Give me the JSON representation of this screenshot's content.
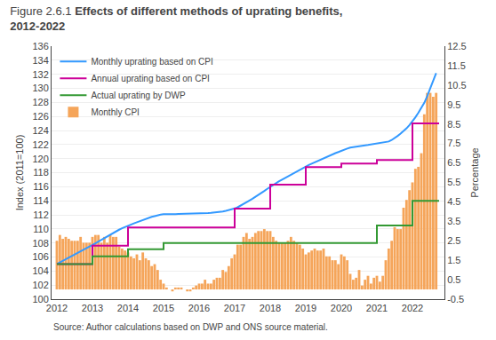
{
  "chart_data": {
    "type": "line",
    "title": "Figure 2.6.1",
    "subtitle": "Effects of different methods of uprating benefits,\n2012-2022",
    "annotations": [
      "Source: Author calculations based on DWP and ONS source material."
    ],
    "ylabel": "Index (2011=100)",
    "y2label": "Percentage",
    "x": [
      2012,
      2012.083333,
      2012.166667,
      2012.25,
      2012.333333,
      2012.416667,
      2012.5,
      2012.583333,
      2012.666667,
      2012.75,
      2012.833333,
      2012.916667,
      2013,
      2013.083333,
      2013.166667,
      2013.25,
      2013.333333,
      2013.416667,
      2013.5,
      2013.583333,
      2013.666667,
      2013.75,
      2013.833333,
      2013.916667,
      2014,
      2014.083333,
      2014.166667,
      2014.25,
      2014.333333,
      2014.416667,
      2014.5,
      2014.583333,
      2014.666667,
      2014.75,
      2014.833333,
      2014.916667,
      2015,
      2015.083333,
      2015.166667,
      2015.25,
      2015.333333,
      2015.416667,
      2015.5,
      2015.583333,
      2015.666667,
      2015.75,
      2015.833333,
      2015.916667,
      2016,
      2016.083333,
      2016.166667,
      2016.25,
      2016.333333,
      2016.416667,
      2016.5,
      2016.583333,
      2016.666667,
      2016.75,
      2016.833333,
      2016.916667,
      2017,
      2017.083333,
      2017.166667,
      2017.25,
      2017.333333,
      2017.416667,
      2017.5,
      2017.583333,
      2017.666667,
      2017.75,
      2017.833333,
      2017.916667,
      2018,
      2018.083333,
      2018.166667,
      2018.25,
      2018.333333,
      2018.416667,
      2018.5,
      2018.583333,
      2018.666667,
      2018.75,
      2018.833333,
      2018.916667,
      2019,
      2019.083333,
      2019.166667,
      2019.25,
      2019.333333,
      2019.416667,
      2019.5,
      2019.583333,
      2019.666667,
      2019.75,
      2019.833333,
      2019.916667,
      2020,
      2020.083333,
      2020.166667,
      2020.25,
      2020.333333,
      2020.416667,
      2020.5,
      2020.583333,
      2020.666667,
      2020.75,
      2020.833333,
      2020.916667,
      2021,
      2021.083333,
      2021.166667,
      2021.25,
      2021.333333,
      2021.416667,
      2021.5,
      2021.583333,
      2021.666667,
      2021.75,
      2021.833333,
      2021.916667,
      2022,
      2022.083333,
      2022.166667,
      2022.25,
      2022.333333,
      2022.416667,
      2022.5,
      2022.583333,
      2022.666667
    ],
    "series": [
      {
        "name": "Monthly uprating based on CPI",
        "type": "line",
        "color": "#3399ff",
        "values": [
          105,
          105.2188,
          105.4643,
          105.6928,
          105.9306,
          106.1601,
          106.3813,
          106.6029,
          106.825,
          107.0653,
          107.2795,
          107.494,
          107.709,
          107.9514,
          108.2032,
          108.4557,
          108.6726,
          108.9171,
          109.135,
          109.3896,
          109.6357,
          109.8824,
          110.0839,
          110.2765,
          110.4603,
          110.6352,
          110.7919,
          110.9397,
          111.1061,
          111.245,
          111.4211,
          111.5697,
          111.7091,
          111.8208,
          111.942,
          112.0353,
          112.0819,
          112.11,
          112.1193,
          112.1193,
          112.11,
          112.1193,
          112.1286,
          112.138,
          112.138,
          112.1286,
          112.1193,
          112.1286,
          112.1473,
          112.1754,
          112.2034,
          112.2502,
          112.2782,
          112.3063,
          112.3531,
          112.4093,
          112.4655,
          112.5592,
          112.6436,
          112.7563,
          112.9066,
          113.076,
          113.2927,
          113.5098,
          113.7652,
          114.0402,
          114.2872,
          114.5444,
          114.8212,
          115.1083,
          115.396,
          115.6941,
          115.9834,
          116.2733,
          116.5349,
          116.7777,
          117.0113,
          117.2453,
          117.4798,
          117.7245,
          117.9894,
          118.2352,
          118.4717,
          118.6988,
          118.9065,
          119.0849,
          119.2734,
          119.4722,
          119.6813,
          119.8807,
          120.0805,
          120.2907,
          120.4611,
          120.6318,
          120.7825,
          120.9335,
          121.0645,
          121.2461,
          121.4179,
          121.5697,
          121.6507,
          121.7014,
          121.7623,
          121.8637,
          121.884,
          121.9348,
          122.0059,
          122.0364,
          122.0975,
          122.1687,
          122.2094,
          122.2807,
          122.4336,
          122.6478,
          122.9033,
          123.2311,
          123.5494,
          123.8686,
          124.3021,
          124.7786,
          125.3089,
          125.8833,
          126.5337,
          127.198,
          127.9399,
          128.8995,
          129.9844,
          131.0784,
          132.1598
        ]
      },
      {
        "name": "Annual uprating based on CPI",
        "type": "line",
        "color": "#cc0099",
        "x": [
          2012,
          2013,
          2013,
          2014,
          2014,
          2015,
          2015,
          2016,
          2016,
          2017,
          2017,
          2018,
          2018,
          2019,
          2019,
          2020,
          2020,
          2021,
          2021,
          2022,
          2022,
          2022.75
        ],
        "values": [
          105.0,
          105.0,
          107.6,
          107.6,
          110.2,
          110.2,
          110.2,
          110.2,
          110.2,
          110.2,
          112.9,
          112.9,
          116.3,
          116.3,
          118.8,
          118.8,
          119.3,
          119.3,
          119.8,
          119.8,
          125.0,
          125.0
        ]
      },
      {
        "name": "Actual uprating by DWP",
        "type": "line",
        "color": "#339933",
        "x": [
          2012,
          2013,
          2013,
          2014,
          2014,
          2015,
          2015,
          2020,
          2020,
          2021,
          2021,
          2022,
          2022,
          2022.75
        ],
        "values": [
          105.0,
          105.0,
          106.1,
          106.1,
          107.1,
          107.1,
          108.0,
          108.0,
          108.0,
          108.0,
          110.5,
          110.5,
          114.0,
          114.0
        ]
      },
      {
        "name": "Monthly CPI",
        "type": "bar",
        "axis": "y2",
        "color": "#f5a55a",
        "values": [
          2.5,
          2.8,
          2.6,
          2.7,
          2.6,
          2.5,
          2.5,
          2.5,
          2.7,
          2.4,
          2.4,
          2.4,
          2.7,
          2.8,
          2.8,
          2.4,
          2.7,
          2.4,
          2.8,
          2.7,
          2.7,
          2.2,
          2.1,
          2.0,
          1.9,
          1.7,
          1.6,
          1.8,
          1.5,
          1.9,
          1.6,
          1.5,
          1.2,
          1.3,
          1.0,
          0.5,
          0.3,
          0.1,
          0.0,
          -0.1,
          0.1,
          0.1,
          0.1,
          0.0,
          -0.1,
          -0.1,
          0.1,
          0.2,
          0.3,
          0.3,
          0.5,
          0.3,
          0.3,
          0.5,
          0.6,
          0.6,
          1.0,
          0.9,
          1.2,
          1.6,
          1.8,
          2.3,
          2.3,
          2.7,
          2.9,
          2.6,
          2.7,
          2.9,
          3.0,
          3.0,
          3.1,
          3.0,
          3.0,
          2.7,
          2.5,
          2.4,
          2.4,
          2.4,
          2.5,
          2.7,
          2.5,
          2.4,
          2.3,
          2.1,
          1.8,
          1.9,
          2.0,
          2.1,
          2.0,
          2.0,
          2.1,
          1.7,
          1.7,
          1.5,
          1.5,
          1.3,
          1.8,
          1.7,
          1.5,
          0.8,
          0.5,
          0.6,
          1.0,
          0.2,
          0.5,
          0.7,
          0.3,
          0.6,
          0.7,
          0.4,
          0.7,
          1.5,
          2.1,
          2.5,
          3.2,
          3.1,
          3.1,
          4.2,
          4.6,
          5.1,
          5.5,
          6.2,
          6.3,
          7.0,
          9.0,
          10.1,
          10.1,
          9.9,
          10.1
        ]
      }
    ],
    "xlim": [
      2011.85,
      2022.9
    ],
    "xticks": [
      2012,
      2013,
      2014,
      2015,
      2016,
      2017,
      2018,
      2019,
      2020,
      2021,
      2022
    ],
    "ylim": [
      100,
      136
    ],
    "yticks": [
      100,
      102,
      104,
      106,
      108,
      110,
      112,
      114,
      116,
      118,
      120,
      122,
      124,
      126,
      128,
      130,
      132,
      134,
      136
    ],
    "y2lim": [
      -0.5,
      12.5
    ],
    "y2ticks": [
      -0.5,
      0.5,
      1.5,
      2.5,
      3.5,
      4.5,
      5.5,
      6.5,
      7.5,
      8.5,
      9.5,
      10.5,
      11.5,
      12.5
    ],
    "grid": true,
    "legend": "upper left"
  }
}
